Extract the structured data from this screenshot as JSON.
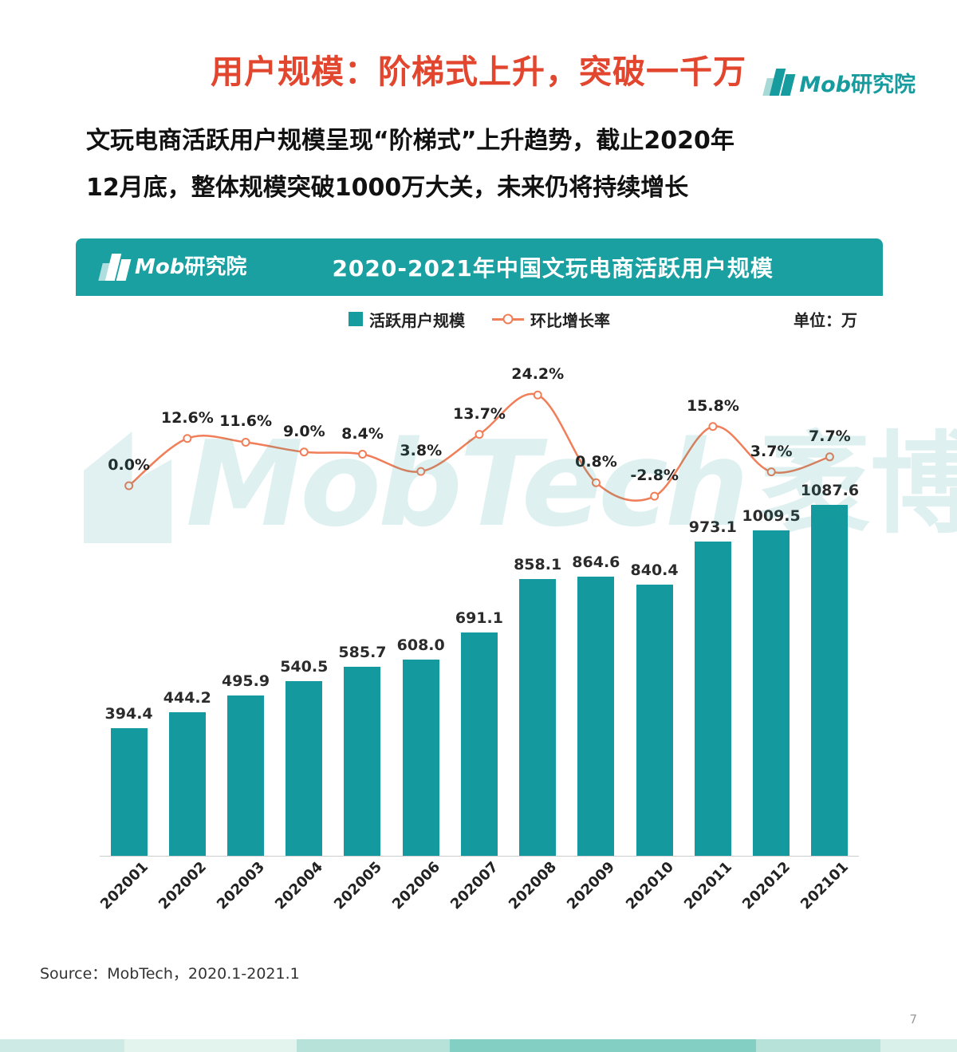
{
  "page": {
    "title": "用户规模：阶梯式上升，突破一千万",
    "intro_line1": "文玩电商活跃用户规模呈现“阶梯式”上升趋势，截止2020年",
    "intro_line2": "12月底，整体规模突破1000万大关，未来仍将持续增长",
    "source": "Source：MobTech，2020.1-2021.1",
    "page_number": "7"
  },
  "brand": {
    "logo_mob": "Mob",
    "logo_rest": "研究院",
    "watermark_main": "MobTech",
    "watermark_suffix": "袤博"
  },
  "chart": {
    "header_title": "2020-2021年中国文玩电商活跃用户规模",
    "legend": [
      {
        "label": "活跃用户规模",
        "type": "bar"
      },
      {
        "label": "环比增长率",
        "type": "line"
      }
    ],
    "unit_label": "单位：万"
  },
  "colors": {
    "teal": "#169B9E",
    "teal_header": "#1BA0A1",
    "title_red": "#E2462E",
    "line_orange": "#F07E58",
    "watermark": "rgba(23,150,152,0.14)"
  },
  "chart_data": {
    "type": "bar",
    "title": "2020-2021年中国文玩电商活跃用户规模",
    "unit": "万",
    "categories": [
      "202001",
      "202002",
      "202003",
      "202004",
      "202005",
      "202006",
      "202007",
      "202008",
      "202009",
      "202010",
      "202011",
      "202012",
      "202101"
    ],
    "series": [
      {
        "name": "活跃用户规模",
        "type": "bar",
        "unit": "万",
        "values": [
          394.4,
          444.2,
          495.9,
          540.5,
          585.7,
          608.0,
          691.1,
          858.1,
          864.6,
          840.4,
          973.1,
          1009.5,
          1087.6
        ]
      },
      {
        "name": "环比增长率",
        "type": "line",
        "unit": "%",
        "values": [
          0.0,
          12.6,
          11.6,
          9.0,
          8.4,
          3.8,
          13.7,
          24.2,
          0.8,
          -2.8,
          15.8,
          3.7,
          7.7
        ]
      }
    ],
    "ylim": [
      0,
      1100
    ],
    "legend_position": "top",
    "grid": false
  }
}
